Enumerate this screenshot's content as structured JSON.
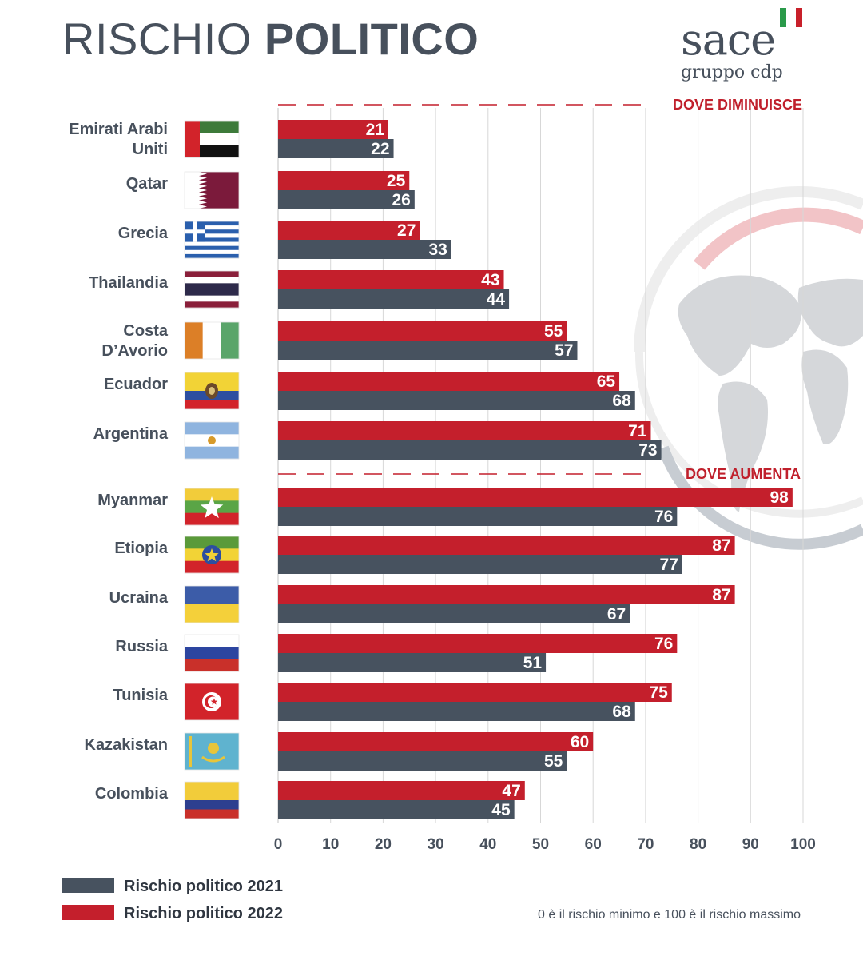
{
  "title": {
    "light": "RISCHIO ",
    "bold": "POLITICO"
  },
  "logo": {
    "word": "sace",
    "sub": "gruppo cdp"
  },
  "note": "0 è il rischio minimo e 100 è il rischio massimo",
  "colors": {
    "series_2021": "#47525f",
    "series_2022": "#c41f2c",
    "text": "#47505c",
    "grid": "#d7d7d7"
  },
  "chart_data": {
    "type": "bar",
    "orientation": "horizontal",
    "categories": [
      "Emirati Arabi\nUniti",
      "Qatar",
      "Grecia",
      "Thailandia",
      "Costa\nD’Avorio",
      "Ecuador",
      "Argentina",
      "Myanmar",
      "Etiopia",
      "Ucraina",
      "Russia",
      "Tunisia",
      "Kazakistan",
      "Colombia"
    ],
    "series": [
      {
        "name": "Rischio politico 2022",
        "values": [
          21,
          25,
          27,
          43,
          55,
          65,
          71,
          98,
          87,
          87,
          76,
          75,
          60,
          47
        ]
      },
      {
        "name": "Rischio politico 2021",
        "values": [
          22,
          26,
          33,
          44,
          57,
          68,
          73,
          76,
          77,
          67,
          51,
          68,
          55,
          45
        ]
      }
    ],
    "sections": [
      {
        "label": "DOVE DIMINUISCE",
        "categories": [
          0,
          1,
          2,
          3,
          4,
          5,
          6
        ]
      },
      {
        "label": "DOVE AUMENTA",
        "categories": [
          7,
          8,
          9,
          10,
          11,
          12,
          13
        ]
      }
    ],
    "xlim": [
      0,
      100
    ],
    "xticks": [
      0,
      10,
      20,
      30,
      40,
      50,
      60,
      70,
      80,
      90,
      100
    ],
    "grid": true,
    "legend": {
      "placement": "bottom-left",
      "entries": [
        "Rischio politico 2021",
        "Rischio politico 2022"
      ]
    },
    "flags": [
      "uae-flag",
      "qatar-flag",
      "greece-flag",
      "thailand-flag",
      "ivory-coast-flag",
      "ecuador-flag",
      "argentina-flag",
      "myanmar-flag",
      "ethiopia-flag",
      "ukraine-flag",
      "russia-flag",
      "tunisia-flag",
      "kazakhstan-flag",
      "colombia-flag"
    ]
  }
}
